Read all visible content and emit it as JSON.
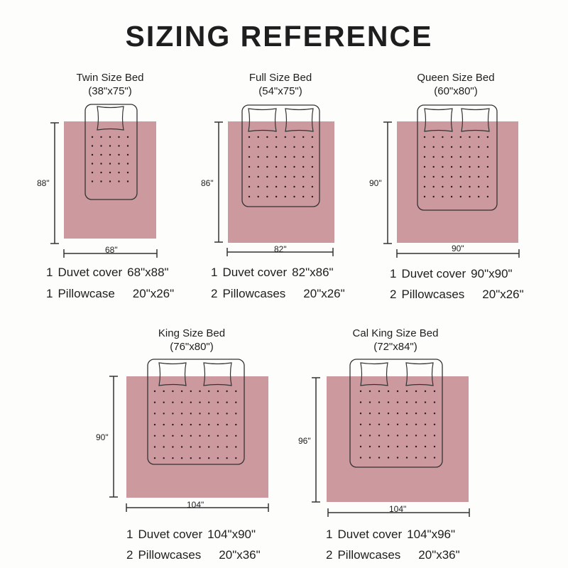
{
  "title": "SIZING REFERENCE",
  "colors": {
    "duvet": "#c9939a",
    "outline": "#333333",
    "text": "#1e1e1e"
  },
  "beds": [
    {
      "title": "Twin Size Bed",
      "dims": "(38\"x75\")",
      "height_label": "88\"",
      "width_label": "68\"",
      "pillows": 1,
      "lines": [
        {
          "qty": "1",
          "item": "Duvet cover",
          "size": "68\"x88\""
        },
        {
          "qty": "1",
          "item": "Pillowcase",
          "size": "20\"x26\""
        }
      ]
    },
    {
      "title": "Full Size Bed",
      "dims": "(54\"x75\")",
      "height_label": "86\"",
      "width_label": "82\"",
      "pillows": 2,
      "lines": [
        {
          "qty": "1",
          "item": "Duvet cover",
          "size": "82\"x86\""
        },
        {
          "qty": "2",
          "item": "Pillowcases",
          "size": "20\"x26\""
        }
      ]
    },
    {
      "title": "Queen Size Bed",
      "dims": "(60\"x80\")",
      "height_label": "90\"",
      "width_label": "90\"",
      "pillows": 2,
      "lines": [
        {
          "qty": "1",
          "item": "Duvet cover",
          "size": "90\"x90\""
        },
        {
          "qty": "2",
          "item": "Pillowcases",
          "size": "20\"x26\""
        }
      ]
    },
    {
      "title": "King Size Bed",
      "dims": "(76\"x80\")",
      "height_label": "90\"",
      "width_label": "104\"",
      "pillows": 2,
      "lines": [
        {
          "qty": "1",
          "item": "Duvet cover",
          "size": "104\"x90\""
        },
        {
          "qty": "2",
          "item": "Pillowcases",
          "size": "20\"x36\""
        }
      ]
    },
    {
      "title": "Cal King Size Bed",
      "dims": "(72\"x84\")",
      "height_label": "96\"",
      "width_label": "104\"",
      "pillows": 2,
      "lines": [
        {
          "qty": "1",
          "item": "Duvet cover",
          "size": "104\"x96\""
        },
        {
          "qty": "2",
          "item": "Pillowcases",
          "size": "20\"x36\""
        }
      ]
    }
  ]
}
